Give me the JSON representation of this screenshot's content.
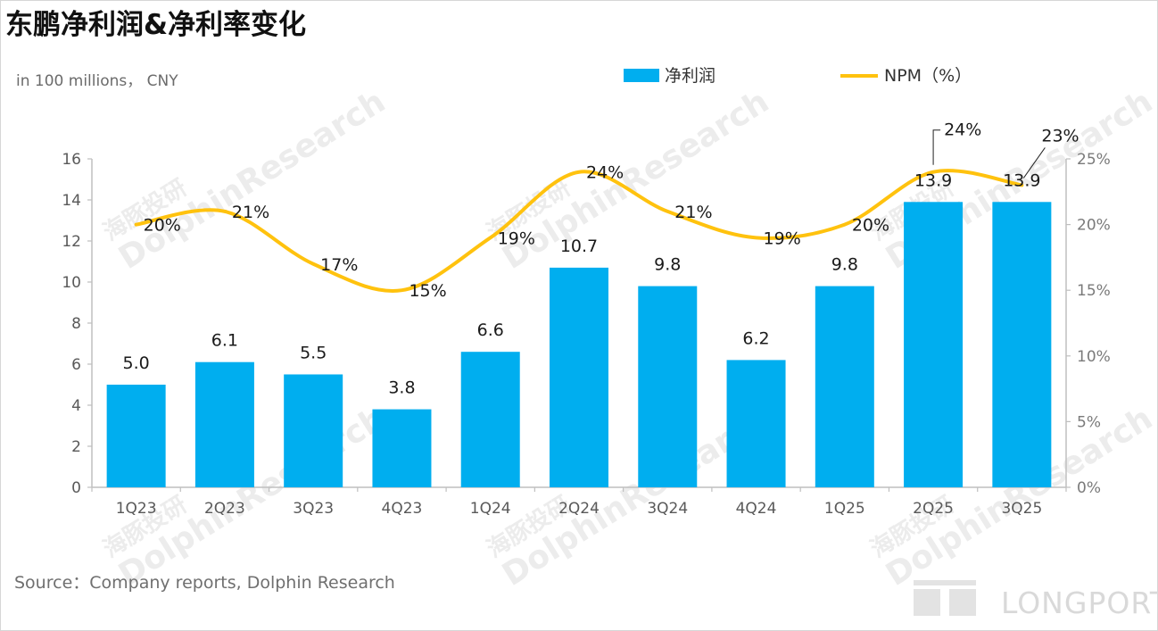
{
  "title": "东鹏净利润&净利率变化",
  "unit_label": "in 100 millions， CNY",
  "source": "Source：Company reports, Dolphin Research",
  "brand": "LONGPORT",
  "watermark": {
    "cn": "海豚投研",
    "en": "DolphinResearch"
  },
  "colors": {
    "bar": "#00AEEF",
    "line": "#FFC20E",
    "axis": "#bfbfbf",
    "text": "#595959"
  },
  "chart_data": {
    "type": "bar",
    "categories": [
      "1Q23",
      "2Q23",
      "3Q23",
      "4Q23",
      "1Q24",
      "2Q24",
      "3Q24",
      "4Q24",
      "1Q25",
      "2Q25",
      "3Q25"
    ],
    "series": [
      {
        "name": "净利润",
        "type": "bar",
        "axis": "left",
        "values": [
          5.0,
          6.1,
          5.5,
          3.8,
          6.6,
          10.7,
          9.8,
          6.2,
          9.8,
          13.9,
          13.9
        ],
        "labels": [
          "5.0",
          "6.1",
          "5.5",
          "3.8",
          "6.6",
          "10.7",
          "9.8",
          "6.2",
          "9.8",
          "13.9",
          "13.9"
        ]
      },
      {
        "name": "NPM（%）",
        "type": "line",
        "axis": "right",
        "values": [
          20,
          21,
          17,
          15,
          19,
          24,
          21,
          19,
          20,
          24,
          23
        ],
        "labels": [
          "20%",
          "21%",
          "17%",
          "15%",
          "19%",
          "24%",
          "21%",
          "19%",
          "20%",
          "24%",
          "23%"
        ]
      }
    ],
    "y_left": {
      "min": 0,
      "max": 16,
      "ticks": [
        "0",
        "2",
        "4",
        "6",
        "8",
        "10",
        "12",
        "14",
        "16"
      ]
    },
    "y_right": {
      "min": 0,
      "max": 25,
      "ticks": [
        "0%",
        "5%",
        "10%",
        "15%",
        "20%",
        "25%"
      ]
    },
    "legend": "top-right",
    "grid": false
  }
}
